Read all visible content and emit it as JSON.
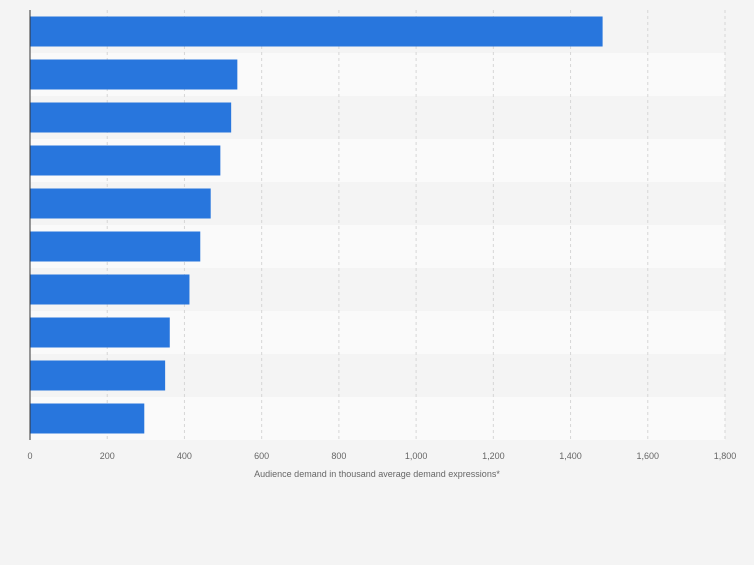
{
  "chart_data": {
    "type": "bar",
    "orientation": "horizontal",
    "categories": [
      "",
      "",
      "",
      "",
      "",
      "",
      "",
      "",
      "",
      ""
    ],
    "values": [
      1483,
      537,
      521,
      493,
      468,
      441,
      413,
      362,
      350,
      296
    ],
    "title": "",
    "xlabel": "Audience demand in thousand average demand expressions*",
    "ylabel": "",
    "xlim": [
      0,
      1800
    ],
    "xticks": [
      0,
      200,
      400,
      600,
      800,
      1000,
      1200,
      1400,
      1600,
      1800
    ],
    "xtick_labels": [
      "0",
      "200",
      "400",
      "600",
      "800",
      "1,000",
      "1,200",
      "1,400",
      "1,600",
      "1,800"
    ],
    "grid": true,
    "bar_color": "#2876dd",
    "band_colors": [
      "#f4f4f4",
      "#fafafa"
    ]
  }
}
